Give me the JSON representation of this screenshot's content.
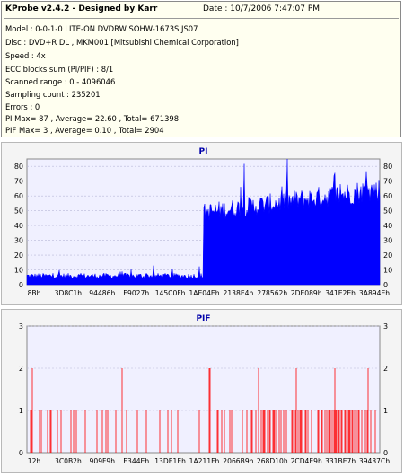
{
  "info": {
    "title": "KProbe v2.4.2 - Designed by Karr",
    "date": "Date : 10/7/2006 7:47:07 PM",
    "lines": [
      "Model : 0-0-1-0 LITE-ON DVDRW SOHW-1673S JS07",
      "Disc : DVD+R DL , MKM001 [Mitsubishi Chemical Corporation]",
      "Speed : 4x",
      "ECC blocks sum (PI/PIF) : 8/1",
      "Scanned range : 0 - 4096046",
      "Sampling count : 235201",
      "Errors : 0",
      "PI Max= 87 , Average= 22.60 , Total= 671398",
      "PIF Max= 3 , Average= 0.10 , Total= 2904"
    ]
  },
  "colors": {
    "pi_series": "#0000ff",
    "pif_series": "#ff0000",
    "plot_bg": "#f0f0ff",
    "title_blue": "#0000aa"
  },
  "chart_data": [
    {
      "type": "area",
      "title": "PI",
      "ylim": [
        0,
        85
      ],
      "y_ticks": [
        0,
        10,
        20,
        30,
        40,
        50,
        60,
        70,
        80
      ],
      "x_tick_labels": [
        "8Bh",
        "3D8C1h",
        "94486h",
        "E9027h",
        "145C0Fh",
        "1AE04Eh",
        "2138E4h",
        "278562h",
        "2DE089h",
        "341E2Eh",
        "3A894Eh"
      ],
      "series": [
        {
          "segments": [
            {
              "x_fraction": [
                0.0,
                0.5
              ],
              "typical": 6,
              "peak": 13
            },
            {
              "x_fraction": [
                0.5,
                1.0
              ],
              "typical_start": 50,
              "typical_end": 66,
              "peak": 87
            }
          ]
        }
      ],
      "max": 87,
      "grid": true
    },
    {
      "type": "bar",
      "title": "PIF",
      "ylim": [
        0,
        3
      ],
      "y_ticks": [
        0,
        1,
        2,
        3
      ],
      "x_tick_labels": [
        "12h",
        "3C0B2h",
        "909F9h",
        "E344Eh",
        "13DE1Eh",
        "1A211Fh",
        "2066B9h",
        "268D10h",
        "2CD4E9h",
        "331BE7h",
        "39437Ch"
      ],
      "series": [
        {
          "values_note_density": "sparse errors mostly 1, some 2, few 3",
          "max": 3
        }
      ],
      "grid": true
    }
  ]
}
